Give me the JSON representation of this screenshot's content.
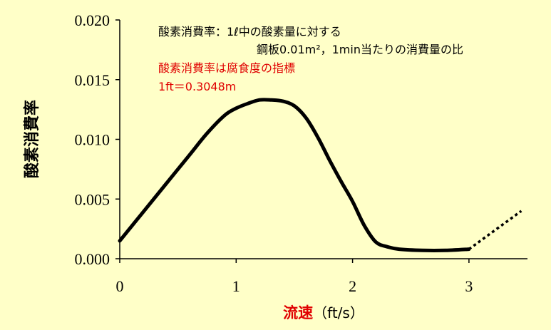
{
  "chart_data": {
    "type": "line",
    "ylabel": "酸素消費率",
    "xlabel": "流速",
    "xlabel_unit": "（ft/s）",
    "xlim": [
      0,
      3.5
    ],
    "ylim": [
      0,
      0.02
    ],
    "x_ticks": [
      "0",
      "1",
      "2",
      "3"
    ],
    "y_ticks": [
      "0.000",
      "0.005",
      "0.010",
      "0.015",
      "0.020"
    ],
    "grid": false,
    "series": [
      {
        "style": "solid",
        "x": [
          0,
          0.2,
          0.4,
          0.6,
          0.75,
          0.9,
          1.0,
          1.1,
          1.2,
          1.3,
          1.4,
          1.5,
          1.6,
          1.7,
          1.8,
          1.9,
          2.0,
          2.1,
          2.2,
          2.3,
          2.4,
          2.6,
          2.8,
          3.0
        ],
        "y": [
          0.0015,
          0.0039,
          0.0063,
          0.0087,
          0.0105,
          0.012,
          0.0126,
          0.013,
          0.0133,
          0.0133,
          0.0132,
          0.0128,
          0.0118,
          0.0102,
          0.0083,
          0.0065,
          0.0048,
          0.0028,
          0.0014,
          0.001,
          0.0008,
          0.0007,
          0.0007,
          0.0008
        ]
      },
      {
        "style": "dotted",
        "x": [
          3.0,
          3.45
        ],
        "y": [
          0.0008,
          0.004
        ]
      }
    ],
    "annotations": {
      "line1": "酸素消費率：1ℓ中の酸素量に対する",
      "line2": "鋼板0.01m²，1min当たりの消費量の比",
      "line3": "酸素消費率は腐食度の指標",
      "line4": "1ft＝0.3048m"
    }
  }
}
